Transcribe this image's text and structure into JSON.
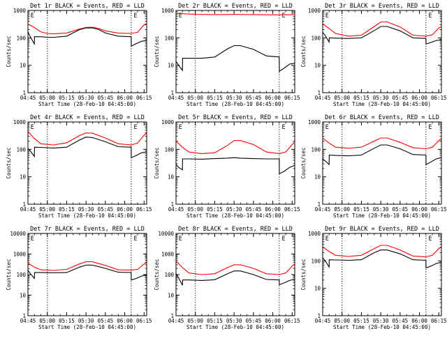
{
  "chart_data": [
    {
      "type": "line",
      "title": "Det 1r BLACK = Events, RED = LLD",
      "xlabel": "Start Time (28-Feb-10 04:45:00)",
      "ylabel": "Counts/sec",
      "yscale": "log",
      "ylim": [
        1,
        1000
      ],
      "x_ticks": [
        "04:45",
        "05:00",
        "05:15",
        "05:30",
        "05:45",
        "06:00",
        "06:15"
      ],
      "y_ticks": [
        "1",
        "10",
        "100",
        "1000"
      ],
      "marker": "E",
      "grid": false,
      "series": [
        {
          "color": "#ff0000",
          "x": [
            0,
            5,
            10,
            15,
            20,
            30,
            40,
            45,
            50,
            55,
            60,
            70,
            80,
            85,
            90,
            92
          ],
          "y": [
            320,
            240,
            165,
            145,
            140,
            150,
            210,
            240,
            245,
            220,
            180,
            150,
            145,
            160,
            300,
            330
          ]
        },
        {
          "color": "#000000",
          "x": [
            0,
            1,
            5,
            5.1,
            10,
            15,
            20,
            30,
            40,
            45,
            50,
            55,
            60,
            70,
            80,
            80.1,
            84,
            88,
            92
          ],
          "y": [
            170,
            130,
            60,
            110,
            110,
            105,
            105,
            115,
            200,
            230,
            230,
            200,
            150,
            115,
            110,
            50,
            62,
            75,
            80
          ]
        }
      ]
    },
    {
      "type": "line",
      "title": "Det 2r BLACK = Events, RED = LLD",
      "xlabel": "Start Time (28-Feb-10 04:45:00)",
      "ylabel": "Counts/sec",
      "yscale": "log",
      "ylim": [
        1,
        1000
      ],
      "x_ticks": [
        "04:45",
        "05:00",
        "05:15",
        "05:30",
        "05:45",
        "06:00",
        "06:15"
      ],
      "y_ticks": [
        "1",
        "10",
        "100",
        "1000"
      ],
      "marker": "E",
      "grid": false,
      "series": [
        {
          "color": "#ff0000",
          "x": [
            0,
            15,
            30,
            45,
            60,
            75,
            92
          ],
          "y": [
            780,
            720,
            710,
            715,
            710,
            690,
            700
          ]
        },
        {
          "color": "#000000",
          "x": [
            0,
            2,
            5,
            5.1,
            15,
            20,
            30,
            40,
            45,
            50,
            60,
            70,
            80,
            80.1,
            84,
            88,
            92
          ],
          "y": [
            14,
            10,
            6.5,
            18,
            18,
            18,
            20,
            40,
            52,
            52,
            38,
            22,
            20,
            6,
            8,
            11,
            12
          ]
        }
      ]
    },
    {
      "type": "line",
      "title": "Det 3r BLACK = Events, RED = LLD",
      "xlabel": "Start Time (28-Feb-10 04:45:00)",
      "ylabel": "Counts/sec",
      "yscale": "log",
      "ylim": [
        1,
        1000
      ],
      "x_ticks": [
        "04:45",
        "05:00",
        "05:15",
        "05:30",
        "05:45",
        "06:00",
        "06:15"
      ],
      "y_ticks": [
        "1",
        "10",
        "100",
        "1000"
      ],
      "marker": "E",
      "grid": false,
      "series": [
        {
          "color": "#ff0000",
          "x": [
            0,
            5,
            10,
            20,
            30,
            40,
            45,
            50,
            60,
            70,
            80,
            85,
            90,
            92
          ],
          "y": [
            330,
            220,
            145,
            115,
            125,
            260,
            380,
            380,
            250,
            125,
            115,
            130,
            230,
            260
          ]
        },
        {
          "color": "#000000",
          "x": [
            0,
            2,
            5,
            5.1,
            10,
            20,
            30,
            40,
            45,
            50,
            60,
            70,
            80,
            80.1,
            84,
            88,
            92
          ],
          "y": [
            160,
            120,
            70,
            100,
            98,
            95,
            100,
            185,
            260,
            260,
            180,
            100,
            95,
            60,
            68,
            80,
            85
          ]
        }
      ]
    },
    {
      "type": "line",
      "title": "Det 4r BLACK = Events, RED = LLD",
      "xlabel": "Start Time (28-Feb-10 04:45:00)",
      "ylabel": "Counts/sec",
      "yscale": "log",
      "ylim": [
        1,
        1000
      ],
      "x_ticks": [
        "04:45",
        "05:00",
        "05:15",
        "05:30",
        "05:45",
        "06:00",
        "06:15"
      ],
      "y_ticks": [
        "1",
        "10",
        "100",
        "1000"
      ],
      "marker": "E",
      "grid": false,
      "series": [
        {
          "color": "#ff0000",
          "x": [
            0,
            5,
            10,
            20,
            30,
            40,
            45,
            50,
            60,
            70,
            80,
            85,
            90,
            92
          ],
          "y": [
            450,
            250,
            160,
            145,
            175,
            320,
            400,
            390,
            260,
            160,
            145,
            170,
            330,
            400
          ]
        },
        {
          "color": "#000000",
          "x": [
            0,
            2,
            5,
            5.1,
            10,
            20,
            30,
            40,
            45,
            50,
            60,
            70,
            80,
            80.1,
            84,
            88,
            92
          ],
          "y": [
            110,
            85,
            55,
            120,
            118,
            112,
            120,
            220,
            280,
            270,
            190,
            125,
            120,
            50,
            60,
            75,
            80
          ]
        }
      ]
    },
    {
      "type": "line",
      "title": "Det 5r BLACK = Events, RED = LLD",
      "xlabel": "Start Time (28-Feb-10 04:45:00)",
      "ylabel": "Counts/sec",
      "yscale": "log",
      "ylim": [
        1,
        1000
      ],
      "x_ticks": [
        "04:45",
        "05:00",
        "05:15",
        "05:30",
        "05:45",
        "06:00",
        "06:15"
      ],
      "y_ticks": [
        "1",
        "10",
        "100",
        "1000"
      ],
      "marker": "E",
      "grid": false,
      "series": [
        {
          "color": "#ff0000",
          "x": [
            0,
            5,
            10,
            20,
            30,
            40,
            45,
            50,
            60,
            70,
            80,
            85,
            90,
            92
          ],
          "y": [
            200,
            120,
            80,
            70,
            75,
            140,
            210,
            210,
            150,
            80,
            70,
            80,
            150,
            190
          ]
        },
        {
          "color": "#000000",
          "x": [
            0,
            2,
            5,
            5.1,
            10,
            20,
            30,
            40,
            45,
            50,
            60,
            70,
            80,
            80.1,
            84,
            88,
            92
          ],
          "y": [
            28,
            22,
            18,
            45,
            45,
            44,
            46,
            48,
            50,
            48,
            46,
            45,
            45,
            13,
            16,
            22,
            26
          ]
        }
      ]
    },
    {
      "type": "line",
      "title": "Det 6r BLACK = Events, RED = LLD",
      "xlabel": "Start Time (28-Feb-10 04:45:00)",
      "ylabel": "Counts/sec",
      "yscale": "log",
      "ylim": [
        1,
        1000
      ],
      "x_ticks": [
        "04:45",
        "05:00",
        "05:15",
        "05:30",
        "05:45",
        "06:00",
        "06:15"
      ],
      "y_ticks": [
        "1",
        "10",
        "100",
        "1000"
      ],
      "marker": "E",
      "grid": false,
      "series": [
        {
          "color": "#ff0000",
          "x": [
            0,
            5,
            10,
            20,
            30,
            40,
            45,
            50,
            60,
            70,
            80,
            85,
            90,
            92
          ],
          "y": [
            260,
            170,
            120,
            110,
            120,
            200,
            260,
            260,
            180,
            115,
            105,
            120,
            210,
            250
          ]
        },
        {
          "color": "#000000",
          "x": [
            0,
            2,
            5,
            5.1,
            10,
            20,
            30,
            40,
            45,
            50,
            60,
            70,
            80,
            80.1,
            84,
            88,
            92
          ],
          "y": [
            45,
            38,
            28,
            62,
            60,
            58,
            62,
            110,
            145,
            145,
            105,
            65,
            62,
            28,
            35,
            45,
            50
          ]
        }
      ]
    },
    {
      "type": "line",
      "title": "Det 7r BLACK = Events, RED = LLD",
      "xlabel": "Start Time (28-Feb-10 04:45:00)",
      "ylabel": "Counts/sec",
      "yscale": "log",
      "ylim": [
        1,
        10000
      ],
      "x_ticks": [
        "04:45",
        "05:00",
        "05:15",
        "05:30",
        "05:45",
        "06:00",
        "06:15"
      ],
      "y_ticks": [
        "1",
        "10",
        "100",
        "1000",
        "10000"
      ],
      "marker": "E",
      "grid": false,
      "series": [
        {
          "color": "#ff0000",
          "x": [
            0,
            5,
            10,
            20,
            30,
            40,
            45,
            50,
            60,
            70,
            80,
            85,
            90,
            92
          ],
          "y": [
            360,
            230,
            170,
            160,
            180,
            330,
            420,
            420,
            280,
            170,
            165,
            180,
            330,
            390
          ]
        },
        {
          "color": "#000000",
          "x": [
            0,
            2,
            5,
            5.1,
            10,
            20,
            30,
            40,
            45,
            50,
            60,
            70,
            80,
            80.1,
            84,
            88,
            92
          ],
          "y": [
            160,
            110,
            65,
            125,
            125,
            122,
            125,
            230,
            290,
            290,
            200,
            130,
            125,
            55,
            65,
            85,
            95
          ]
        }
      ]
    },
    {
      "type": "line",
      "title": "Det 8r BLACK = Events, RED = LLD",
      "xlabel": "Start Time (28-Feb-10 04:45:00)",
      "ylabel": "Counts/sec",
      "yscale": "log",
      "ylim": [
        1,
        10000
      ],
      "x_ticks": [
        "04:45",
        "05:00",
        "05:15",
        "05:30",
        "05:45",
        "06:00",
        "06:15"
      ],
      "y_ticks": [
        "1",
        "10",
        "100",
        "1000",
        "10000"
      ],
      "marker": "E",
      "grid": false,
      "series": [
        {
          "color": "#ff0000",
          "x": [
            0,
            5,
            10,
            20,
            30,
            40,
            45,
            50,
            60,
            70,
            80,
            85,
            90,
            92
          ],
          "y": [
            450,
            220,
            120,
            100,
            110,
            220,
            300,
            300,
            200,
            110,
            100,
            120,
            260,
            330
          ]
        },
        {
          "color": "#000000",
          "x": [
            0,
            2,
            5,
            5.1,
            10,
            20,
            30,
            40,
            45,
            50,
            60,
            70,
            80,
            80.1,
            84,
            88,
            92
          ],
          "y": [
            110,
            70,
            30,
            55,
            55,
            52,
            56,
            110,
            150,
            150,
            100,
            58,
            55,
            32,
            40,
            52,
            60
          ]
        }
      ]
    },
    {
      "type": "line",
      "title": "Det 9r BLACK = Events, RED = LLD",
      "xlabel": "Start Time (28-Feb-10 04:45:00)",
      "ylabel": "Counts/sec",
      "yscale": "log",
      "ylim": [
        1,
        1000
      ],
      "x_ticks": [
        "04:45",
        "05:00",
        "05:15",
        "05:30",
        "05:45",
        "06:00",
        "06:15"
      ],
      "y_ticks": [
        "1",
        "10",
        "100",
        "1000"
      ],
      "marker": "E",
      "grid": false,
      "series": [
        {
          "color": "#ff0000",
          "x": [
            0,
            5,
            10,
            20,
            30,
            40,
            45,
            50,
            60,
            70,
            80,
            85,
            90,
            92
          ],
          "y": [
            330,
            220,
            160,
            145,
            160,
            280,
            370,
            370,
            250,
            150,
            140,
            160,
            280,
            330
          ]
        },
        {
          "color": "#000000",
          "x": [
            0,
            2,
            5,
            5.1,
            10,
            20,
            30,
            40,
            45,
            50,
            60,
            70,
            80,
            80.1,
            84,
            88,
            92
          ],
          "y": [
            130,
            100,
            60,
            110,
            108,
            105,
            110,
            200,
            250,
            250,
            180,
            110,
            105,
            55,
            65,
            80,
            90
          ]
        }
      ]
    }
  ]
}
